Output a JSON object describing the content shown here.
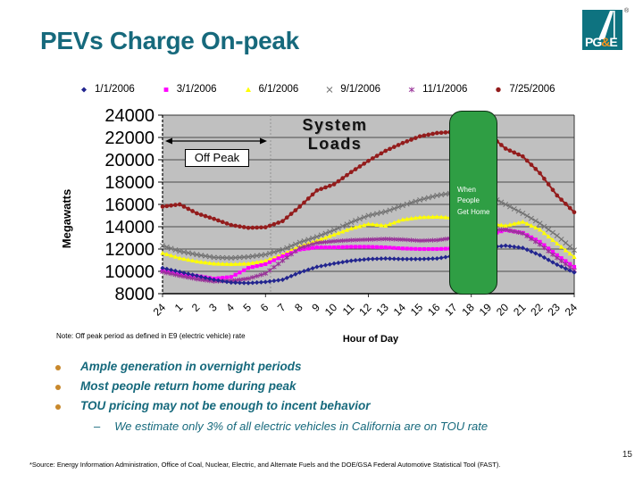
{
  "slide": {
    "title": "PEVs Charge On-peak",
    "page_number": "15",
    "note": "Note: Off peak period as defined in E9 (electric vehicle) rate",
    "footnote": "*Source: Energy Information Administration, Office of Coal, Nuclear, Electric, and Alternate Fuels and the DOE/GSA Federal Automotive Statistical Tool (FAST)."
  },
  "logo": {
    "pg": "PG",
    "amp": "&",
    "e": "E",
    "registered": "®"
  },
  "bullets": {
    "items": [
      "Ample generation in overnight periods",
      "Most people return home during peak",
      "TOU pricing may not be enough to incent behavior"
    ],
    "sub_dash": "–",
    "sub_item": "We estimate only 3% of all electric vehicles in California are on TOU rate"
  },
  "chart_data": {
    "type": "line",
    "title": "System Loads",
    "xlabel": "Hour of Day",
    "ylabel": "Megawatts",
    "ylim": [
      8000,
      24000
    ],
    "ytick_step": 2000,
    "grid": true,
    "legend_position": "top",
    "plot_bg": "#c0c0c0",
    "x_categories": [
      "24",
      "1",
      "2",
      "3",
      "4",
      "5",
      "6",
      "7",
      "8",
      "9",
      "10",
      "11",
      "12",
      "13",
      "14",
      "15",
      "16",
      "17",
      "18",
      "19",
      "20",
      "21",
      "22",
      "23",
      "24"
    ],
    "annotations": {
      "off_peak_label": "Off Peak",
      "off_peak_span_hours": [
        "24",
        "7"
      ],
      "green_box_label": "When People Get Home",
      "green_box_span_hours": [
        "18",
        "19"
      ],
      "green_box_color": "#2f9e44"
    },
    "series": [
      {
        "name": "1/1/2006",
        "marker": "diamond",
        "color": "#22258f",
        "values": [
          10300,
          9950,
          9600,
          9250,
          9000,
          8950,
          9050,
          9250,
          9900,
          10400,
          10700,
          10950,
          11100,
          11150,
          11100,
          11100,
          11150,
          11400,
          11800,
          12150,
          12300,
          12100,
          11450,
          10600,
          9900
        ]
      },
      {
        "name": "3/1/2006",
        "marker": "square",
        "color": "#ff00ff",
        "values": [
          10050,
          9750,
          9600,
          9350,
          9500,
          10300,
          10650,
          11350,
          11950,
          12150,
          12150,
          12200,
          12200,
          12150,
          12050,
          12000,
          12000,
          12050,
          12450,
          13250,
          13700,
          13450,
          12650,
          11450,
          10400
        ]
      },
      {
        "name": "6/1/2006",
        "marker": "triangle",
        "color": "#ffff00",
        "values": [
          11650,
          11200,
          10900,
          10700,
          10650,
          10700,
          10950,
          11500,
          12250,
          12750,
          13300,
          13850,
          14250,
          14100,
          14650,
          14850,
          14900,
          14800,
          14650,
          14300,
          14100,
          14450,
          13750,
          12500,
          11300
        ]
      },
      {
        "name": "9/1/2006",
        "marker": "x",
        "color": "#737373",
        "values": [
          12300,
          11800,
          11500,
          11250,
          11200,
          11300,
          11500,
          11950,
          12600,
          13100,
          13700,
          14400,
          15000,
          15350,
          15900,
          16400,
          16800,
          17050,
          17100,
          16800,
          16000,
          15200,
          14300,
          13200,
          11900
        ]
      },
      {
        "name": "11/1/2006",
        "marker": "asterisk",
        "color": "#993399",
        "values": [
          9950,
          9600,
          9300,
          9100,
          9150,
          9350,
          9800,
          10950,
          12100,
          12550,
          12700,
          12800,
          12850,
          12900,
          12850,
          12750,
          12800,
          13000,
          13300,
          13700,
          13750,
          13400,
          12400,
          11200,
          10100
        ]
      },
      {
        "name": "7/25/2006",
        "marker": "circle",
        "color": "#931c1c",
        "values": [
          15800,
          16000,
          15200,
          14700,
          14150,
          13900,
          13950,
          14500,
          15800,
          17250,
          17800,
          18900,
          19900,
          20800,
          21500,
          22100,
          22400,
          22500,
          22550,
          22300,
          21000,
          20300,
          18800,
          16800,
          15300
        ]
      }
    ]
  }
}
